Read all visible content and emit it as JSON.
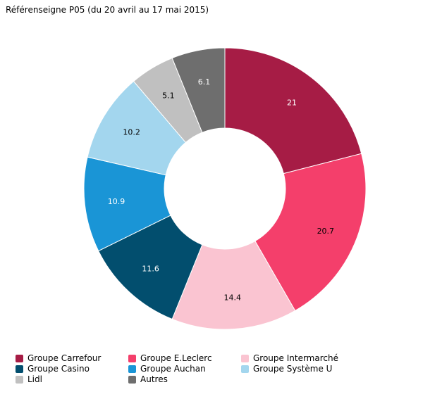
{
  "title": "Référenseigne P05 (du 20 avril au 17 mai 2015)",
  "chart_data": {
    "type": "pie",
    "donut": true,
    "legend_position": "bottom",
    "slices": [
      {
        "label": "Groupe Carrefour",
        "value": 21,
        "value_label": "21",
        "color": "#A61C45",
        "label_color": "#ffffff"
      },
      {
        "label": "Groupe E.Leclerc",
        "value": 20.7,
        "value_label": "20.7",
        "color": "#F43F6B",
        "label_color": "#000000"
      },
      {
        "label": "Groupe Intermarché",
        "value": 14.4,
        "value_label": "14.4",
        "color": "#FAC4D1",
        "label_color": "#000000"
      },
      {
        "label": "Groupe Casino",
        "value": 11.6,
        "value_label": "11.6",
        "color": "#024E6E",
        "label_color": "#ffffff"
      },
      {
        "label": "Groupe Auchan",
        "value": 10.9,
        "value_label": "10.9",
        "color": "#1A95D6",
        "label_color": "#ffffff"
      },
      {
        "label": "Groupe Système U",
        "value": 10.2,
        "value_label": "10.2",
        "color": "#A3D6EE",
        "label_color": "#000000"
      },
      {
        "label": "Lidl",
        "value": 5.1,
        "value_label": "5.1",
        "color": "#C0C0C0",
        "label_color": "#000000"
      },
      {
        "label": "Autres",
        "value": 6.1,
        "value_label": "6.1",
        "color": "#6E6E6E",
        "label_color": "#ffffff"
      }
    ]
  }
}
